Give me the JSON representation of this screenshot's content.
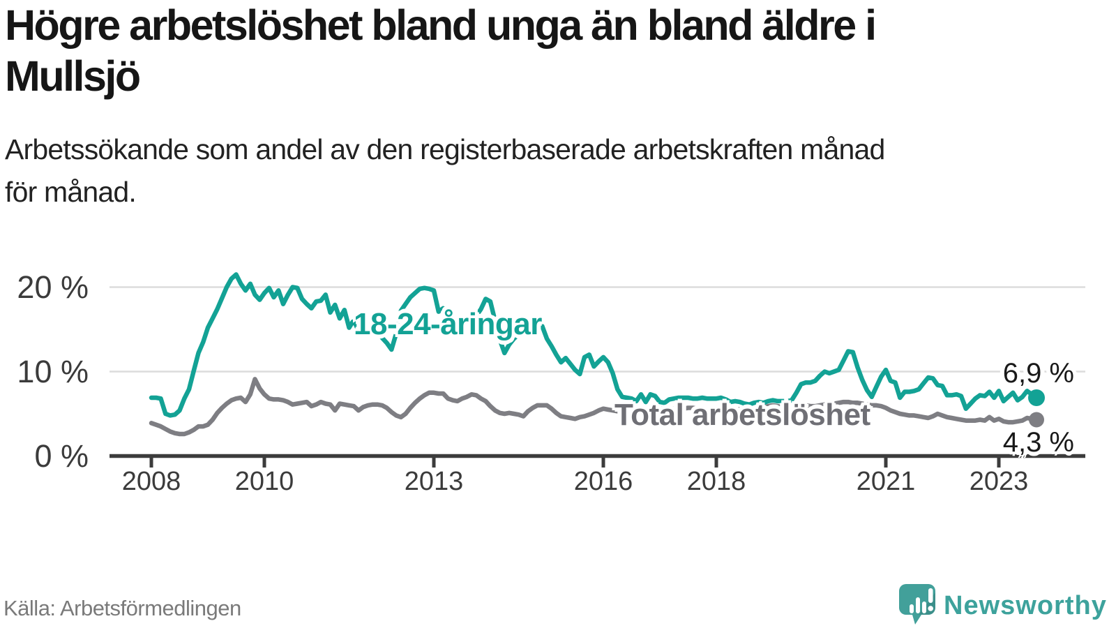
{
  "header": {
    "title_lines": [
      "Högre arbetslöshet bland unga än bland äldre i",
      "Mullsjö"
    ],
    "subtitle_lines": [
      "Arbetssökande som andel av den registerbaserade arbetskraften månad",
      "för månad."
    ]
  },
  "chart_data": {
    "type": "line",
    "title": "Högre arbetslöshet bland unga än bland äldre i Mullsjö",
    "subtitle": "Arbetssökande som andel av den registerbaserade arbetskraften månad för månad.",
    "unit": "%",
    "x_interval": "month",
    "x_start": "2008-01",
    "x_end": "2023-09",
    "grid": "horizontal",
    "legend": "inline-labels",
    "ylim": [
      0,
      22.5
    ],
    "y_ticks": [
      0,
      10,
      20
    ],
    "y_tick_labels": [
      "0 %",
      "10 %",
      "20 %"
    ],
    "x_ticks": [
      2008,
      2010,
      2013,
      2016,
      2018,
      2021,
      2023
    ],
    "x_tick_labels": [
      "2008",
      "2010",
      "2013",
      "2016",
      "2018",
      "2021",
      "2023"
    ],
    "series": [
      {
        "name": "18-24-åringar",
        "color": "#13a295",
        "end_value": 6.9,
        "end_label": "6,9 %",
        "values": [
          6.9,
          6.9,
          6.8,
          5.0,
          4.8,
          4.9,
          5.4,
          6.8,
          7.9,
          10.1,
          12.2,
          13.5,
          15.2,
          16.3,
          17.4,
          18.7,
          20.0,
          21.0,
          21.5,
          20.4,
          19.6,
          20.4,
          19.1,
          18.5,
          19.3,
          19.9,
          18.8,
          19.6,
          18.0,
          19.1,
          20.0,
          19.9,
          18.6,
          18.0,
          17.5,
          18.3,
          18.4,
          19.1,
          17.0,
          17.9,
          16.3,
          17.3,
          15.2,
          16.1,
          14.8,
          16.3,
          15.5,
          15.0,
          14.6,
          14.0,
          13.4,
          12.6,
          14.5,
          17.2,
          18.0,
          18.8,
          19.3,
          19.8,
          19.9,
          19.8,
          19.6,
          17.1,
          17.5,
          16.1,
          15.2,
          14.8,
          15.6,
          16.2,
          17.0,
          16.6,
          17.4,
          18.6,
          18.3,
          16.0,
          13.8,
          12.2,
          13.2,
          13.9,
          14.4,
          14.9,
          14.5,
          15.2,
          15.8,
          15.4,
          13.9,
          13.0,
          12.0,
          11.1,
          11.6,
          10.9,
          10.2,
          9.7,
          11.7,
          12.0,
          10.6,
          11.2,
          11.7,
          11.1,
          9.8,
          7.9,
          7.0,
          6.9,
          6.8,
          6.5,
          7.3,
          6.4,
          7.3,
          7.1,
          6.4,
          6.3,
          6.7,
          6.8,
          6.9,
          6.9,
          6.9,
          6.8,
          6.8,
          6.9,
          6.8,
          6.8,
          6.8,
          6.9,
          6.7,
          6.4,
          6.5,
          6.4,
          6.2,
          6.1,
          6.3,
          6.4,
          6.3,
          6.5,
          6.6,
          6.5,
          6.5,
          6.5,
          6.6,
          7.5,
          8.5,
          8.7,
          8.7,
          8.9,
          9.5,
          10.0,
          9.8,
          10.0,
          10.2,
          11.3,
          12.4,
          12.3,
          10.5,
          9.0,
          7.8,
          7.0,
          8.2,
          9.4,
          10.2,
          8.9,
          8.7,
          6.9,
          7.6,
          7.6,
          7.7,
          7.9,
          8.6,
          9.3,
          9.2,
          8.4,
          8.3,
          7.2,
          7.2,
          7.3,
          7.1,
          5.6,
          6.2,
          6.8,
          7.2,
          7.1,
          7.6,
          6.9,
          7.7,
          6.5,
          7.0,
          7.5,
          6.6,
          7.0,
          7.7,
          7.3,
          6.9
        ]
      },
      {
        "name": "Total arbetslöshet",
        "color": "#7e7e83",
        "end_value": 4.3,
        "end_label": "4,3 %",
        "values": [
          3.9,
          3.7,
          3.5,
          3.2,
          2.9,
          2.7,
          2.6,
          2.6,
          2.8,
          3.1,
          3.5,
          3.5,
          3.7,
          4.3,
          5.1,
          5.7,
          6.2,
          6.6,
          6.8,
          6.9,
          6.4,
          7.3,
          9.1,
          8.0,
          7.3,
          6.8,
          6.7,
          6.7,
          6.6,
          6.4,
          6.1,
          6.2,
          6.3,
          6.4,
          5.9,
          6.1,
          6.4,
          6.2,
          6.1,
          5.4,
          6.2,
          6.1,
          6.0,
          5.9,
          5.4,
          5.8,
          6.0,
          6.1,
          6.1,
          6.0,
          5.7,
          5.2,
          4.8,
          4.6,
          5.0,
          5.7,
          6.3,
          6.8,
          7.2,
          7.5,
          7.5,
          7.4,
          7.4,
          6.8,
          6.6,
          6.5,
          6.8,
          7.0,
          7.3,
          7.2,
          6.8,
          6.5,
          5.9,
          5.4,
          5.1,
          5.0,
          5.1,
          5.0,
          4.9,
          4.7,
          5.3,
          5.7,
          6.0,
          6.0,
          6.0,
          5.6,
          5.1,
          4.7,
          4.6,
          4.5,
          4.4,
          4.6,
          4.7,
          4.9,
          5.1,
          5.4,
          5.6,
          5.5,
          5.4,
          5.3,
          5.2,
          5.1,
          5.2,
          5.3,
          5.4,
          5.3,
          5.4,
          5.5,
          5.6,
          5.7,
          5.7,
          5.6,
          5.5,
          5.6,
          5.7,
          5.7,
          5.6,
          5.5,
          5.4,
          5.5,
          5.6,
          5.7,
          5.8,
          5.7,
          5.6,
          5.5,
          5.4,
          5.5,
          5.6,
          5.7,
          5.8,
          5.9,
          6.0,
          5.9,
          5.8,
          5.7,
          5.8,
          5.9,
          6.0,
          6.0,
          5.9,
          5.9,
          6.0,
          6.1,
          6.1,
          6.2,
          6.3,
          6.4,
          6.4,
          6.3,
          6.3,
          6.2,
          6.1,
          6.0,
          6.0,
          5.9,
          5.7,
          5.4,
          5.2,
          5.0,
          4.9,
          4.8,
          4.8,
          4.7,
          4.6,
          4.5,
          4.7,
          5.0,
          4.8,
          4.6,
          4.5,
          4.4,
          4.3,
          4.2,
          4.2,
          4.2,
          4.3,
          4.2,
          4.6,
          4.2,
          4.4,
          4.1,
          4.0,
          4.0,
          4.1,
          4.2,
          4.5,
          4.4,
          4.3
        ]
      }
    ],
    "colors": {
      "young": "#13a295",
      "total": "#7e7e83",
      "grid": "#dcdcdc",
      "axis": "#3c3c3c",
      "tick_text": "#3b3b3b"
    }
  },
  "footer": {
    "source": "Källa: Arbetsförmedlingen",
    "brand": "Newsworthy"
  }
}
